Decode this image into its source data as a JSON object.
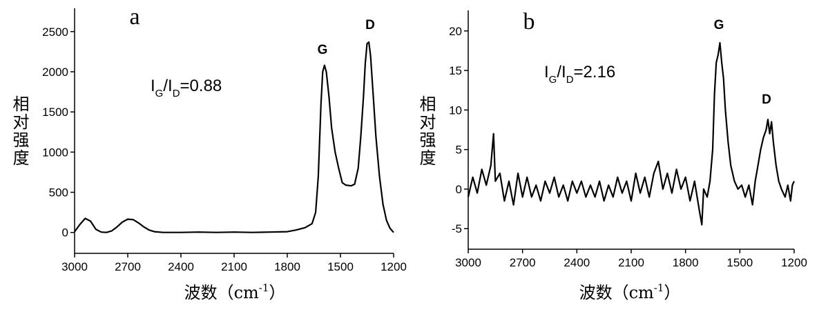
{
  "chart_data": [
    {
      "type": "line",
      "title": "a",
      "y_label": "相对强度",
      "x_label": [
        "波数（cm",
        "-1",
        "）"
      ],
      "ratio_label": [
        "I",
        "G",
        "/I",
        "D",
        "=0.88"
      ],
      "annotations": [
        "G",
        "D"
      ],
      "x": [
        3000,
        2970,
        2940,
        2910,
        2880,
        2850,
        2820,
        2790,
        2760,
        2730,
        2700,
        2670,
        2640,
        2610,
        2580,
        2550,
        2500,
        2400,
        2300,
        2200,
        2100,
        2000,
        1900,
        1800,
        1750,
        1700,
        1660,
        1640,
        1625,
        1610,
        1600,
        1590,
        1580,
        1565,
        1550,
        1530,
        1510,
        1490,
        1470,
        1440,
        1420,
        1400,
        1385,
        1370,
        1360,
        1350,
        1340,
        1330,
        1315,
        1300,
        1280,
        1260,
        1240,
        1220,
        1200
      ],
      "series": [
        {
          "color": "#000000",
          "values": [
            10,
            100,
            175,
            140,
            40,
            5,
            0,
            20,
            70,
            130,
            165,
            160,
            120,
            70,
            30,
            10,
            0,
            0,
            5,
            0,
            5,
            0,
            5,
            10,
            30,
            60,
            110,
            250,
            700,
            1600,
            2000,
            2080,
            2000,
            1700,
            1300,
            1000,
            800,
            620,
            590,
            580,
            600,
            800,
            1200,
            1700,
            2100,
            2350,
            2370,
            2200,
            1700,
            1200,
            700,
            350,
            150,
            50,
            0
          ]
        }
      ],
      "xlim": [
        3000,
        1200
      ],
      "xticks": [
        3000,
        2700,
        2400,
        2100,
        1800,
        1500,
        1200
      ],
      "ylim": [
        -260,
        2790
      ],
      "yticks": [
        0,
        500,
        1000,
        1500,
        2000,
        2500
      ]
    },
    {
      "type": "line",
      "title": "b",
      "y_label": "相对强度",
      "x_label": [
        "波数（cm",
        "-1",
        "）"
      ],
      "ratio_label": [
        "I",
        "G",
        "/I",
        "D",
        "=2.16"
      ],
      "annotations": [
        "G",
        "D"
      ],
      "x": [
        3000,
        2975,
        2950,
        2925,
        2900,
        2875,
        2860,
        2850,
        2825,
        2800,
        2775,
        2750,
        2725,
        2700,
        2675,
        2650,
        2625,
        2600,
        2575,
        2550,
        2525,
        2500,
        2475,
        2450,
        2425,
        2400,
        2375,
        2350,
        2325,
        2300,
        2275,
        2250,
        2225,
        2200,
        2175,
        2150,
        2125,
        2100,
        2075,
        2050,
        2025,
        2000,
        1975,
        1950,
        1925,
        1900,
        1875,
        1850,
        1825,
        1800,
        1775,
        1750,
        1725,
        1710,
        1700,
        1680,
        1665,
        1650,
        1640,
        1630,
        1620,
        1610,
        1600,
        1590,
        1580,
        1565,
        1550,
        1530,
        1510,
        1490,
        1470,
        1450,
        1430,
        1415,
        1400,
        1385,
        1370,
        1355,
        1345,
        1335,
        1325,
        1315,
        1300,
        1285,
        1270,
        1250,
        1235,
        1220,
        1210,
        1200
      ],
      "series": [
        {
          "color": "#000000",
          "values": [
            -1,
            1.5,
            -0.5,
            2.5,
            0.5,
            3,
            7,
            1,
            2,
            -1.5,
            1,
            -2,
            2,
            -1,
            1.5,
            -1,
            0.5,
            -1.5,
            1,
            -0.5,
            1.5,
            -1,
            0.5,
            -1.5,
            1,
            -0.5,
            1,
            -1,
            0.5,
            -1,
            1,
            -1.5,
            0.5,
            -1,
            1.5,
            -0.5,
            1,
            -1.5,
            2,
            -0.5,
            1.5,
            -1,
            2,
            3.5,
            0,
            2,
            -0.5,
            2.5,
            0,
            1.5,
            -1.5,
            1,
            -2.5,
            -4.5,
            0,
            -1,
            1,
            5,
            12,
            16,
            17,
            18.5,
            16,
            14,
            10,
            6,
            3,
            1,
            0,
            0.5,
            -1,
            0.5,
            -2,
            1,
            3,
            5,
            6.5,
            7.5,
            8.8,
            7,
            8.5,
            6,
            3,
            1,
            0,
            -1,
            0.5,
            -1.5,
            0.5,
            1
          ]
        }
      ],
      "xlim": [
        3000,
        1200
      ],
      "xticks": [
        3000,
        2700,
        2400,
        2100,
        1800,
        1500,
        1200
      ],
      "ylim": [
        -7.6,
        22.6
      ],
      "yticks": [
        -5,
        0,
        5,
        10,
        15,
        20
      ]
    }
  ]
}
